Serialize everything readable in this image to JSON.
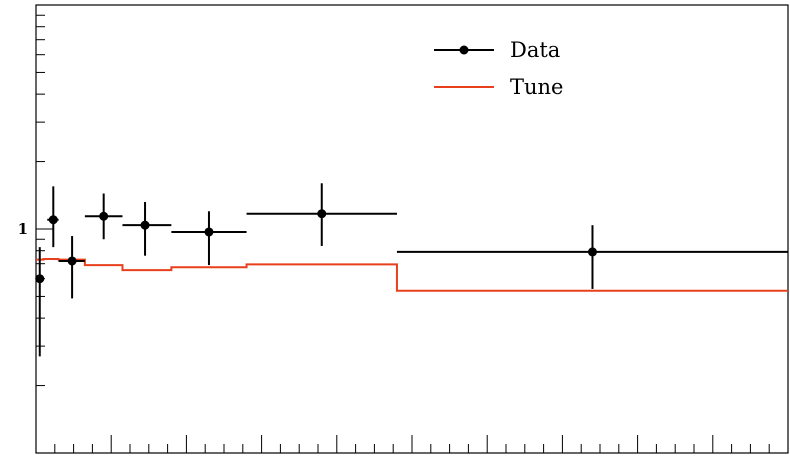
{
  "chart_data": {
    "type": "scatter",
    "xlim": [
      0,
      1
    ],
    "ylim": [
      0.1,
      10
    ],
    "log_y": true,
    "grid": false,
    "legend_position": "top-right",
    "y_tick_labels": [
      {
        "value": 1,
        "label": "1"
      }
    ],
    "series": [
      {
        "name": "Data",
        "kind": "points-with-errors",
        "color": "#000000",
        "points": [
          {
            "x": 0.005,
            "xlo": 0.0,
            "xhi": 0.01,
            "y": 0.6,
            "ylo": 0.27,
            "yhi": 0.83
          },
          {
            "x": 0.023,
            "xlo": 0.015,
            "xhi": 0.03,
            "y": 1.1,
            "ylo": 0.83,
            "yhi": 1.55
          },
          {
            "x": 0.048,
            "xlo": 0.03,
            "xhi": 0.065,
            "y": 0.72,
            "ylo": 0.49,
            "yhi": 0.93
          },
          {
            "x": 0.09,
            "xlo": 0.065,
            "xhi": 0.115,
            "y": 1.14,
            "ylo": 0.9,
            "yhi": 1.44
          },
          {
            "x": 0.145,
            "xlo": 0.115,
            "xhi": 0.18,
            "y": 1.04,
            "ylo": 0.76,
            "yhi": 1.32
          },
          {
            "x": 0.23,
            "xlo": 0.18,
            "xhi": 0.28,
            "y": 0.97,
            "ylo": 0.69,
            "yhi": 1.2
          },
          {
            "x": 0.38,
            "xlo": 0.28,
            "xhi": 0.48,
            "y": 1.17,
            "ylo": 0.84,
            "yhi": 1.6
          },
          {
            "x": 0.74,
            "xlo": 0.48,
            "xhi": 1.0,
            "y": 0.79,
            "ylo": 0.54,
            "yhi": 1.04
          }
        ]
      },
      {
        "name": "Tune",
        "kind": "step",
        "color": "#e8401c",
        "bins": [
          {
            "xlo": 0.0,
            "xhi": 0.01,
            "y": 0.73
          },
          {
            "xlo": 0.01,
            "xhi": 0.03,
            "y": 0.735
          },
          {
            "xlo": 0.03,
            "xhi": 0.065,
            "y": 0.73
          },
          {
            "xlo": 0.065,
            "xhi": 0.115,
            "y": 0.69
          },
          {
            "xlo": 0.115,
            "xhi": 0.18,
            "y": 0.655
          },
          {
            "xlo": 0.18,
            "xhi": 0.28,
            "y": 0.675
          },
          {
            "xlo": 0.28,
            "xhi": 0.48,
            "y": 0.695
          },
          {
            "xlo": 0.48,
            "xhi": 1.0,
            "y": 0.53
          }
        ]
      }
    ]
  }
}
